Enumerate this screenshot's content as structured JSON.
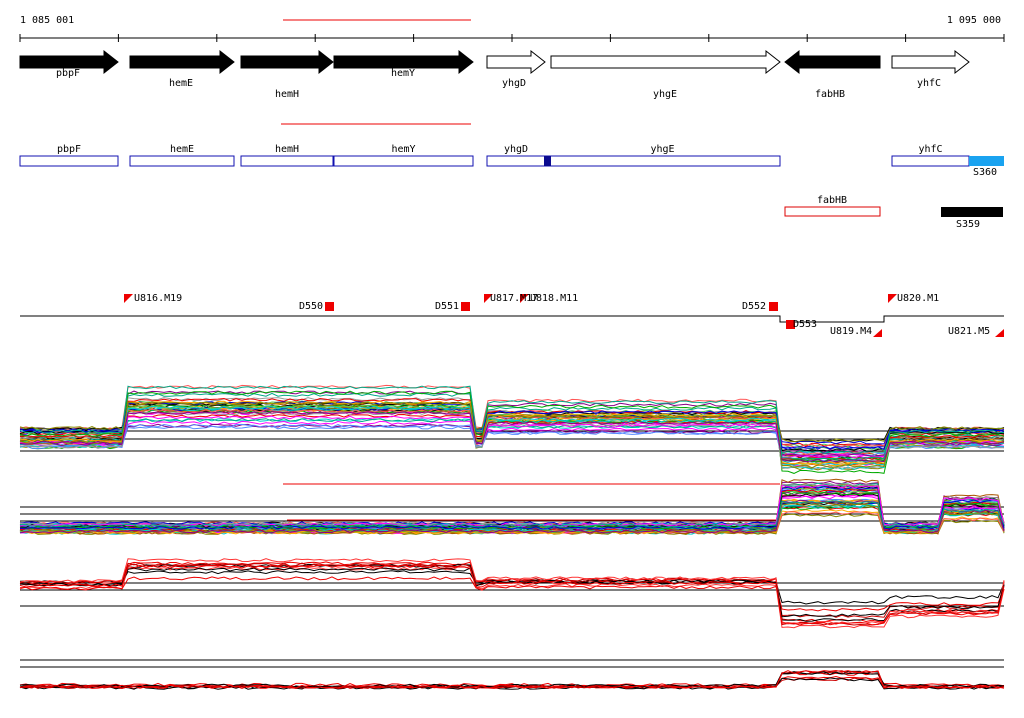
{
  "header": {
    "start": "1 085 001",
    "end": "1 095 000"
  },
  "genes": [
    {
      "label": "pbpF"
    },
    {
      "label": "hemE"
    },
    {
      "label": "hemH"
    },
    {
      "label": "hemY"
    },
    {
      "label": "yhgD"
    },
    {
      "label": "yhgE"
    },
    {
      "label": "fabHB"
    },
    {
      "label": "yhfC"
    }
  ],
  "annotations": [
    {
      "label": "pbpF"
    },
    {
      "label": "hemE"
    },
    {
      "label": "hemH"
    },
    {
      "label": "hemY"
    },
    {
      "label": "yhgD"
    },
    {
      "label": "yhgE"
    },
    {
      "label": "yhfC"
    },
    {
      "label": "S360"
    },
    {
      "label": "fabHB"
    },
    {
      "label": "S359"
    }
  ],
  "segments": [
    {
      "label": "U816.M19"
    },
    {
      "label": "D550"
    },
    {
      "label": "D551"
    },
    {
      "label": "U817.M17"
    },
    {
      "label": "U818.M11"
    },
    {
      "label": "D552"
    },
    {
      "label": "D553"
    },
    {
      "label": "U819.M4"
    },
    {
      "label": "U820.M1"
    },
    {
      "label": "U821.M5"
    }
  ]
}
